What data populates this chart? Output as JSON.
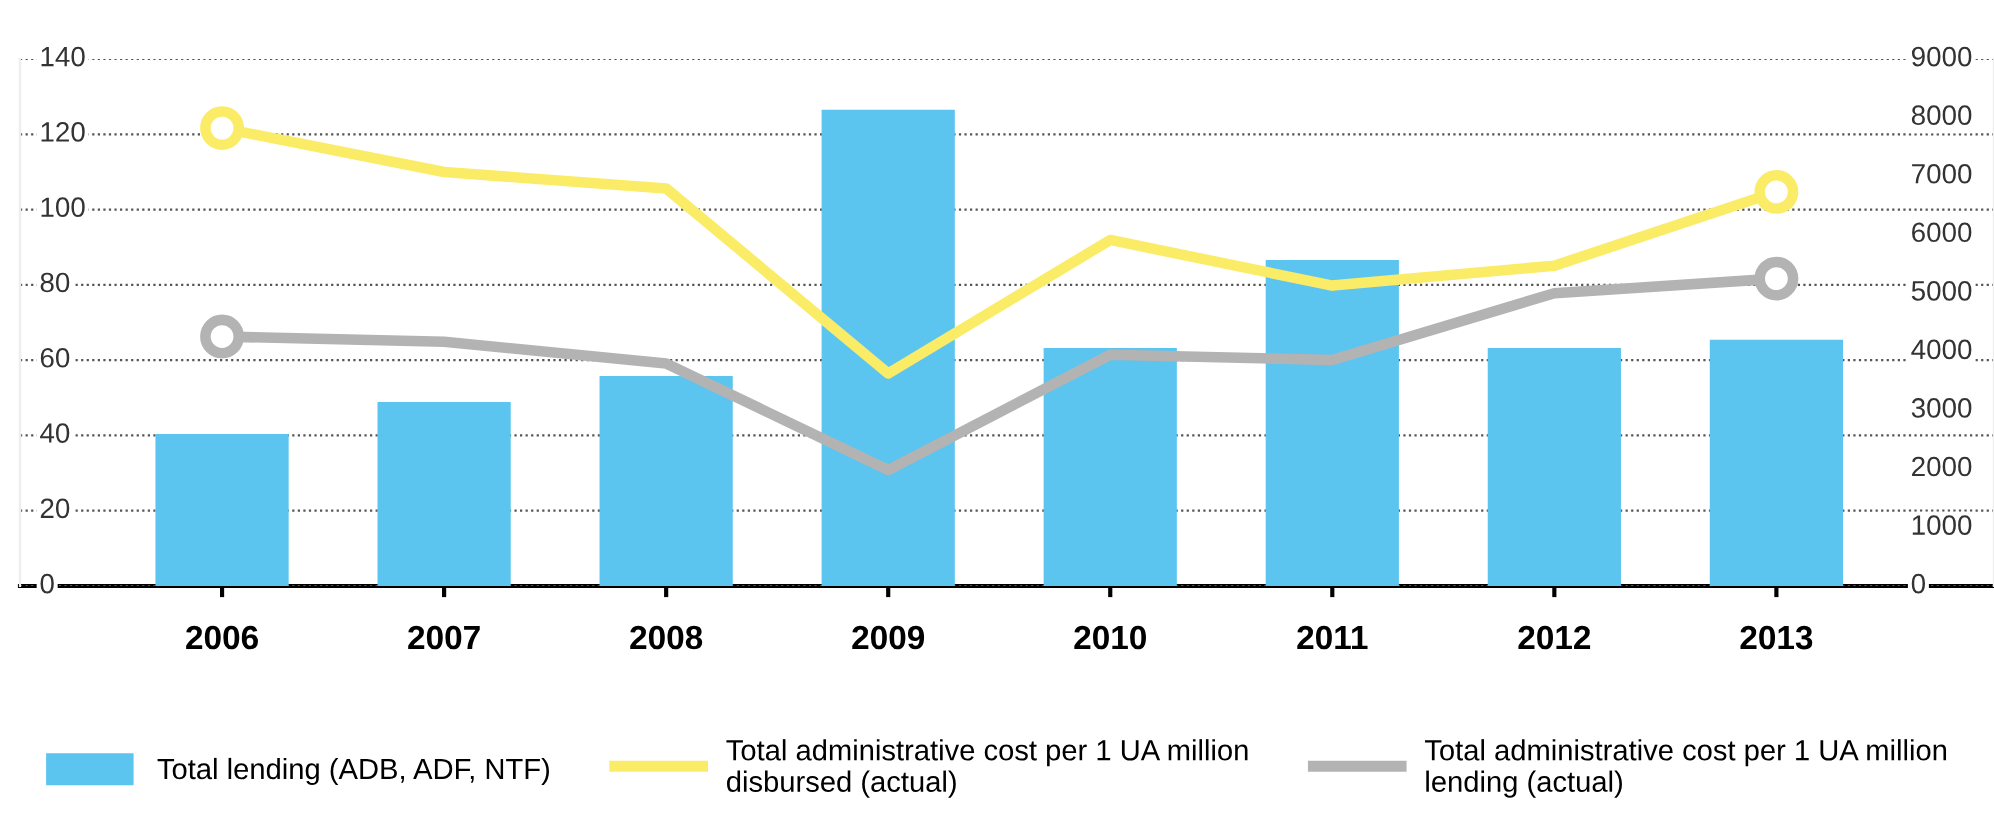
{
  "chart_data": {
    "type": "bar",
    "categories": [
      "2006",
      "2007",
      "2008",
      "2009",
      "2010",
      "2011",
      "2012",
      "2013"
    ],
    "series": [
      {
        "name": "Total lending (ADB, ADF, NTF)",
        "color": "#5bc5f0",
        "values": [
          40.4,
          48.9,
          55.8,
          126.5,
          63.2,
          86.6,
          63.2,
          65.4
        ]
      },
      {
        "name": "Total administrative cost per 1 UA million\ndisbursed (actual)",
        "type": "line",
        "axis": "y2",
        "color": "#fbec67",
        "values": [
          7820,
          7070,
          6790,
          3630,
          5910,
          5130,
          5470,
          6730
        ]
      },
      {
        "name": "Total administrative cost per 1 UA million\nlending (actual)",
        "type": "line",
        "axis": "y2",
        "color": "#b3b3b3",
        "values": [
          4260,
          4170,
          3800,
          1980,
          3950,
          3860,
          5000,
          5250
        ]
      }
    ],
    "ylim": [
      0,
      140
    ],
    "yticks": [
      0,
      20,
      40,
      60,
      80,
      100,
      120,
      140
    ],
    "y2lim": [
      0,
      9000
    ],
    "y2ticks": [
      0,
      1000,
      2000,
      3000,
      4000,
      5000,
      6000,
      7000,
      8000,
      9000
    ],
    "grid": "y",
    "legend": "bottom"
  }
}
